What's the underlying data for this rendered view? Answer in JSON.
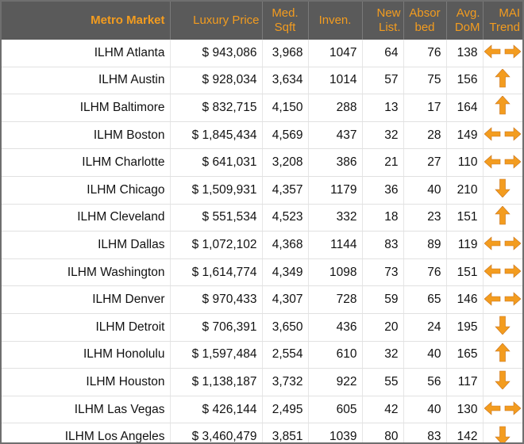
{
  "header": {
    "market": "Metro Market",
    "price": "Luxury Price",
    "sqft": "Med. Sqft",
    "inven": "Inven.",
    "newlist": "New List.",
    "absorbed": "Absor bed",
    "dom": "Avg. DoM",
    "trend": "MAI Trend"
  },
  "colors": {
    "header_bg": "#5a5a5a",
    "header_text": "#f39c1f",
    "arrow": "#f39c1f"
  },
  "rows": [
    {
      "market": "ILHM Atlanta",
      "price": "$ 943,086",
      "sqft": "3,968",
      "inven": "1047",
      "newlist": "64",
      "absorbed": "76",
      "dom": "138",
      "trend": "sideways"
    },
    {
      "market": "ILHM Austin",
      "price": "$ 928,034",
      "sqft": "3,634",
      "inven": "1014",
      "newlist": "57",
      "absorbed": "75",
      "dom": "156",
      "trend": "up"
    },
    {
      "market": "ILHM Baltimore",
      "price": "$ 832,715",
      "sqft": "4,150",
      "inven": "288",
      "newlist": "13",
      "absorbed": "17",
      "dom": "164",
      "trend": "up"
    },
    {
      "market": "ILHM Boston",
      "price": "$ 1,845,434",
      "sqft": "4,569",
      "inven": "437",
      "newlist": "32",
      "absorbed": "28",
      "dom": "149",
      "trend": "sideways"
    },
    {
      "market": "ILHM Charlotte",
      "price": "$ 641,031",
      "sqft": "3,208",
      "inven": "386",
      "newlist": "21",
      "absorbed": "27",
      "dom": "110",
      "trend": "sideways"
    },
    {
      "market": "ILHM Chicago",
      "price": "$ 1,509,931",
      "sqft": "4,357",
      "inven": "1179",
      "newlist": "36",
      "absorbed": "40",
      "dom": "210",
      "trend": "down"
    },
    {
      "market": "ILHM Cleveland",
      "price": "$ 551,534",
      "sqft": "4,523",
      "inven": "332",
      "newlist": "18",
      "absorbed": "23",
      "dom": "151",
      "trend": "up"
    },
    {
      "market": "ILHM Dallas",
      "price": "$ 1,072,102",
      "sqft": "4,368",
      "inven": "1144",
      "newlist": "83",
      "absorbed": "89",
      "dom": "119",
      "trend": "sideways"
    },
    {
      "market": "ILHM Washington",
      "price": "$ 1,614,774",
      "sqft": "4,349",
      "inven": "1098",
      "newlist": "73",
      "absorbed": "76",
      "dom": "151",
      "trend": "sideways"
    },
    {
      "market": "ILHM Denver",
      "price": "$ 970,433",
      "sqft": "4,307",
      "inven": "728",
      "newlist": "59",
      "absorbed": "65",
      "dom": "146",
      "trend": "sideways"
    },
    {
      "market": "ILHM Detroit",
      "price": "$ 706,391",
      "sqft": "3,650",
      "inven": "436",
      "newlist": "20",
      "absorbed": "24",
      "dom": "195",
      "trend": "down"
    },
    {
      "market": "ILHM Honolulu",
      "price": "$ 1,597,484",
      "sqft": "2,554",
      "inven": "610",
      "newlist": "32",
      "absorbed": "40",
      "dom": "165",
      "trend": "up"
    },
    {
      "market": "ILHM Houston",
      "price": "$ 1,138,187",
      "sqft": "3,732",
      "inven": "922",
      "newlist": "55",
      "absorbed": "56",
      "dom": "117",
      "trend": "down"
    },
    {
      "market": "ILHM Las Vegas",
      "price": "$ 426,144",
      "sqft": "2,495",
      "inven": "605",
      "newlist": "42",
      "absorbed": "40",
      "dom": "130",
      "trend": "sideways"
    },
    {
      "market": "ILHM Los Angeles",
      "price": "$ 3,460,479",
      "sqft": "3,851",
      "inven": "1039",
      "newlist": "80",
      "absorbed": "83",
      "dom": "142",
      "trend": "down"
    }
  ]
}
